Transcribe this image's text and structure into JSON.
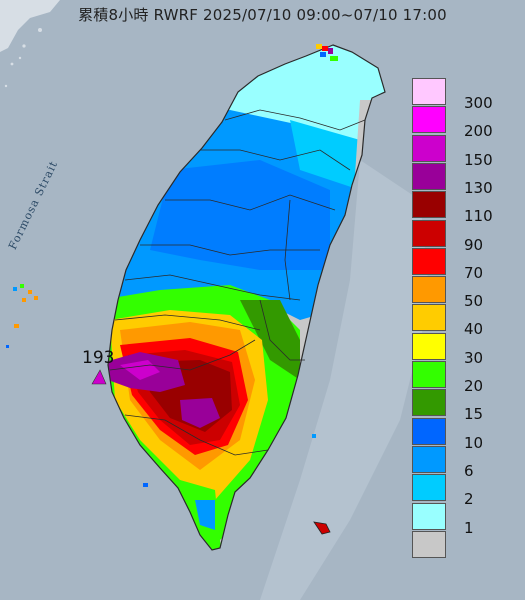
{
  "title": "累積8小時 RWRF 2025/07/10 09:00~07/10 17:00",
  "strait_label": "Formosa Strait",
  "max_value_label": "193",
  "legend": [
    {
      "label": "300",
      "color": "#ffc8ff"
    },
    {
      "label": "200",
      "color": "#ff00ff"
    },
    {
      "label": "150",
      "color": "#cc00cc"
    },
    {
      "label": "130",
      "color": "#990099"
    },
    {
      "label": "110",
      "color": "#990000"
    },
    {
      "label": "90",
      "color": "#cc0000"
    },
    {
      "label": "70",
      "color": "#ff0000"
    },
    {
      "label": "50",
      "color": "#ff9900"
    },
    {
      "label": "40",
      "color": "#ffcc00"
    },
    {
      "label": "30",
      "color": "#ffff00"
    },
    {
      "label": "20",
      "color": "#33ff00"
    },
    {
      "label": "15",
      "color": "#339900"
    },
    {
      "label": "10",
      "color": "#0066ff"
    },
    {
      "label": "6",
      "color": "#0099ff"
    },
    {
      "label": "2",
      "color": "#00ccff"
    },
    {
      "label": "1",
      "color": "#99ffff"
    },
    {
      "label": "",
      "color": "#c8c8c8"
    }
  ],
  "colors": {
    "sea": "#a7b6c4",
    "land_base": "#c8c8c8",
    "county_border": "#2a2a2a"
  }
}
